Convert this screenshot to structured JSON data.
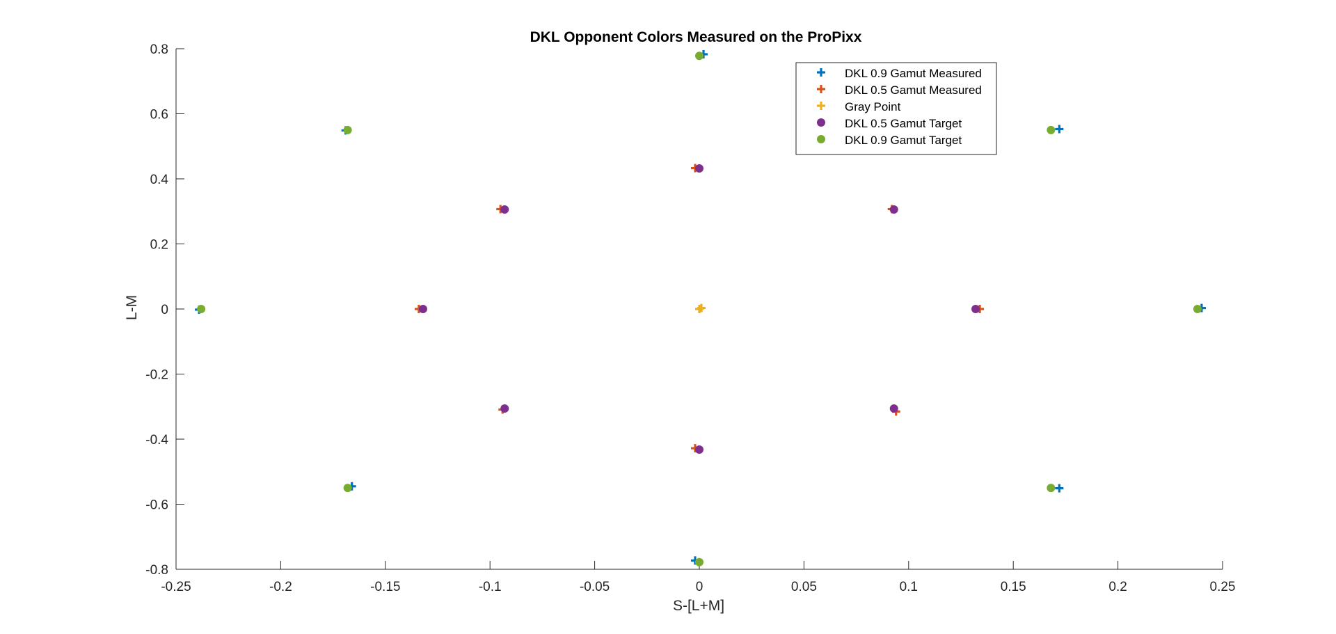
{
  "chart_data": {
    "type": "scatter",
    "title": "DKL Opponent Colors Measured on the ProPixx",
    "xlabel": "S-[L+M]",
    "ylabel": "L-M",
    "xlim": [
      -0.25,
      0.25
    ],
    "ylim": [
      -0.8,
      0.8
    ],
    "xticks": [
      -0.25,
      -0.2,
      -0.15,
      -0.1,
      -0.05,
      0,
      0.05,
      0.1,
      0.15,
      0.2,
      0.25
    ],
    "xtick_labels": [
      "-0.25",
      "-0.2",
      "-0.15",
      "-0.1",
      "-0.05",
      "0",
      "0.05",
      "0.1",
      "0.15",
      "0.2",
      "0.25"
    ],
    "yticks": [
      -0.8,
      -0.6,
      -0.4,
      -0.2,
      0,
      0.2,
      0.4,
      0.6,
      0.8
    ],
    "ytick_labels": [
      "-0.8",
      "-0.6",
      "-0.4",
      "-0.2",
      "0",
      "0.2",
      "0.4",
      "0.6",
      "0.8"
    ],
    "grid": false,
    "legend_position": "top-right",
    "series": [
      {
        "name": "DKL 0.9 Gamut Measured",
        "marker": "plus",
        "color": "#0072BD",
        "points": [
          [
            0.24,
            0.003
          ],
          [
            0.172,
            0.553
          ],
          [
            0.002,
            0.783
          ],
          [
            -0.169,
            0.549
          ],
          [
            -0.239,
            -0.002
          ],
          [
            -0.166,
            -0.545
          ],
          [
            -0.002,
            -0.773
          ],
          [
            0.172,
            -0.551
          ]
        ]
      },
      {
        "name": "DKL 0.5 Gamut Measured",
        "marker": "plus",
        "color": "#D95319",
        "points": [
          [
            0.134,
            0.0
          ],
          [
            0.092,
            0.307
          ],
          [
            -0.002,
            0.433
          ],
          [
            -0.095,
            0.307
          ],
          [
            -0.134,
            0.0
          ],
          [
            -0.094,
            -0.309
          ],
          [
            -0.002,
            -0.428
          ],
          [
            0.094,
            -0.315
          ]
        ]
      },
      {
        "name": "Gray Point",
        "marker": "plus",
        "color": "#EDB120",
        "points": [
          [
            0.0,
            0.0
          ],
          [
            0.001,
            0.003
          ]
        ]
      },
      {
        "name": "DKL 0.5 Gamut Target",
        "marker": "dot",
        "color": "#7E2F8E",
        "points": [
          [
            0.132,
            0.0
          ],
          [
            0.093,
            0.306
          ],
          [
            0.0,
            0.432
          ],
          [
            -0.093,
            0.306
          ],
          [
            -0.132,
            0.0
          ],
          [
            -0.093,
            -0.306
          ],
          [
            0.0,
            -0.432
          ],
          [
            0.093,
            -0.306
          ]
        ]
      },
      {
        "name": "DKL 0.9 Gamut Target",
        "marker": "dot",
        "color": "#77AC30",
        "points": [
          [
            0.238,
            0.0
          ],
          [
            0.168,
            0.55
          ],
          [
            0.0,
            0.778
          ],
          [
            -0.168,
            0.55
          ],
          [
            -0.238,
            0.0
          ],
          [
            -0.168,
            -0.55
          ],
          [
            0.0,
            -0.778
          ],
          [
            0.168,
            -0.55
          ]
        ]
      }
    ]
  }
}
